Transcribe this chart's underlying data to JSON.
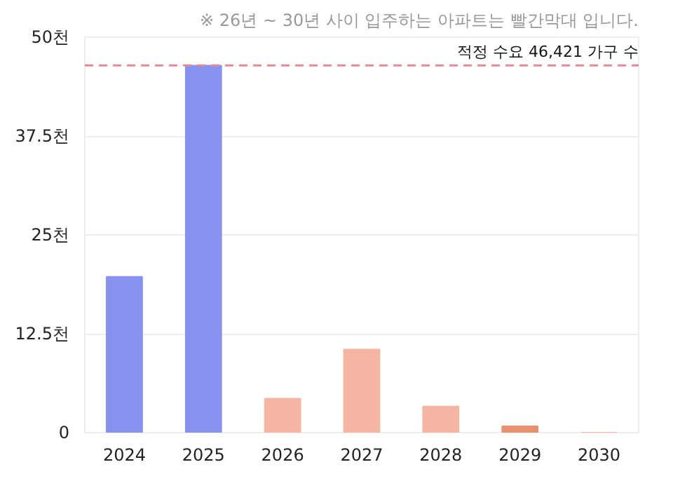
{
  "chart_data": {
    "type": "bar",
    "annotations": [
      "※ 26년 ~ 30년 사이 입주하는 아파트는 빨간막대 입니다."
    ],
    "categories": [
      "2024",
      "2025",
      "2026",
      "2027",
      "2028",
      "2029",
      "2030"
    ],
    "values": [
      19.7,
      46.4,
      4.3,
      10.5,
      3.3,
      0.8,
      0
    ],
    "colors": [
      "#8890f0",
      "#8890f0",
      "#f4b6a3",
      "#f4b6a3",
      "#f4b6a3",
      "#e8906f",
      "#f4b6a3"
    ],
    "ylim": [
      0,
      50
    ],
    "yticks": [
      {
        "value": 0,
        "label": "0"
      },
      {
        "value": 12.5,
        "label": "12.5천"
      },
      {
        "value": 25,
        "label": "25천"
      },
      {
        "value": 37.5,
        "label": "37.5천"
      },
      {
        "value": 50,
        "label": "50천"
      }
    ],
    "ref_lines": [
      {
        "axis": "y",
        "value": 46.421,
        "label": "적정 수요 46,421 가구 수",
        "color": "#e08a96",
        "line_style": "dashed"
      }
    ],
    "grid": "y"
  }
}
